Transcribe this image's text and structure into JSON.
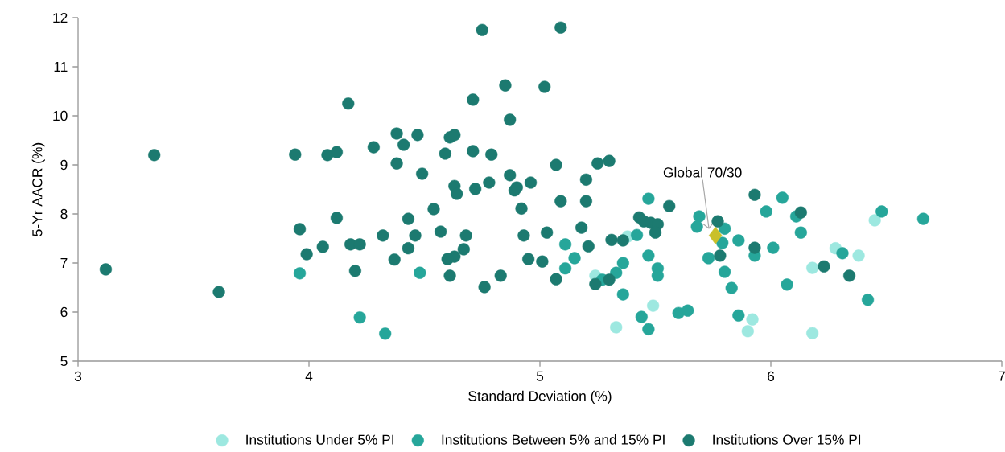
{
  "chart_data": {
    "type": "scatter",
    "xlabel": "Standard Deviation (%)",
    "ylabel": "5-Yr AACR (%)",
    "xlim": [
      3,
      7
    ],
    "xticks": [
      3,
      4,
      5,
      6,
      7
    ],
    "ylim": [
      5,
      12
    ],
    "yticks": [
      5,
      6,
      7,
      8,
      9,
      10,
      11,
      12
    ],
    "grid": false,
    "legend": "bottom",
    "marker": "circle",
    "annotations": [
      "Global 70/30"
    ],
    "series": [
      {
        "name": "Institutions Under 5% PI",
        "color": "#9de8e0",
        "x": [
          5.24,
          5.38,
          5.49,
          5.33,
          6.45,
          6.28,
          6.38,
          6.18,
          5.9,
          5.92,
          6.18
        ],
        "values": [
          6.74,
          7.54,
          6.13,
          5.69,
          7.87,
          7.3,
          7.15,
          6.9,
          5.61,
          5.85,
          5.57
        ]
      },
      {
        "name": "Institutions Between 5% and 15% PI",
        "color": "#26a69a",
        "x": [
          3.96,
          4.22,
          4.33,
          4.48,
          5.11,
          5.15,
          5.11,
          5.47,
          5.69,
          5.68,
          5.8,
          5.79,
          5.73,
          5.8,
          5.83,
          5.86,
          5.86,
          5.93,
          6.01,
          5.98,
          6.05,
          6.07,
          6.11,
          6.13,
          5.42,
          5.36,
          5.33,
          5.27,
          5.36,
          5.47,
          5.51,
          5.51,
          5.44,
          5.47,
          5.6,
          5.64,
          6.42,
          6.66,
          6.48,
          6.31
        ],
        "values": [
          6.79,
          5.89,
          5.56,
          6.8,
          7.38,
          7.1,
          6.89,
          8.31,
          7.95,
          7.74,
          7.7,
          7.41,
          7.1,
          6.82,
          6.49,
          7.46,
          5.93,
          7.15,
          7.31,
          8.05,
          8.33,
          6.56,
          7.95,
          7.62,
          7.57,
          7.0,
          6.8,
          6.66,
          6.36,
          7.15,
          6.89,
          6.74,
          5.9,
          5.65,
          5.98,
          6.03,
          6.25,
          7.9,
          8.05,
          7.2
        ]
      },
      {
        "name": "Institutions Over 15% PI",
        "color": "#1c7a70",
        "x": [
          3.12,
          3.33,
          3.61,
          4.17,
          3.94,
          4.08,
          4.12,
          4.28,
          3.96,
          4.12,
          4.06,
          3.99,
          4.18,
          4.22,
          4.2,
          4.75,
          5.09,
          4.85,
          5.02,
          4.71,
          4.87,
          4.38,
          4.47,
          4.61,
          4.63,
          4.41,
          4.59,
          4.71,
          4.79,
          4.38,
          5.07,
          4.49,
          4.87,
          4.63,
          4.64,
          4.72,
          4.78,
          4.89,
          4.9,
          4.96,
          4.54,
          4.92,
          5.09,
          4.43,
          4.32,
          4.46,
          4.57,
          4.68,
          4.93,
          5.03,
          4.43,
          4.37,
          4.67,
          4.63,
          4.6,
          4.95,
          5.01,
          4.61,
          4.83,
          4.76,
          5.07,
          5.25,
          5.3,
          5.2,
          5.2,
          5.18,
          5.21,
          5.31,
          5.36,
          5.24,
          5.3,
          5.56,
          5.43,
          5.45,
          5.48,
          5.51,
          5.5,
          5.77,
          5.78,
          5.93,
          6.13,
          5.93,
          6.23,
          6.34
        ],
        "values": [
          6.87,
          9.2,
          6.41,
          10.25,
          9.21,
          9.2,
          9.26,
          9.36,
          7.69,
          7.92,
          7.33,
          7.18,
          7.38,
          7.38,
          6.84,
          11.75,
          11.8,
          10.62,
          10.59,
          10.33,
          9.92,
          9.64,
          9.61,
          9.56,
          9.61,
          9.41,
          9.23,
          9.28,
          9.21,
          9.03,
          9.0,
          8.82,
          8.79,
          8.57,
          8.41,
          8.51,
          8.64,
          8.48,
          8.54,
          8.64,
          8.1,
          8.11,
          8.26,
          7.9,
          7.56,
          7.56,
          7.64,
          7.56,
          7.56,
          7.62,
          7.3,
          7.07,
          7.28,
          7.13,
          7.08,
          7.08,
          7.03,
          6.74,
          6.74,
          6.51,
          6.67,
          9.03,
          9.08,
          8.7,
          8.26,
          7.72,
          7.34,
          7.47,
          7.46,
          6.57,
          6.66,
          8.16,
          7.93,
          7.85,
          7.82,
          7.79,
          7.62,
          7.85,
          7.15,
          8.39,
          8.03,
          7.31,
          6.93,
          6.74
        ]
      },
      {
        "color": "#c9c02a",
        "marker": "diamond",
        "x": [
          5.76
        ],
        "values": [
          7.56
        ]
      }
    ]
  }
}
